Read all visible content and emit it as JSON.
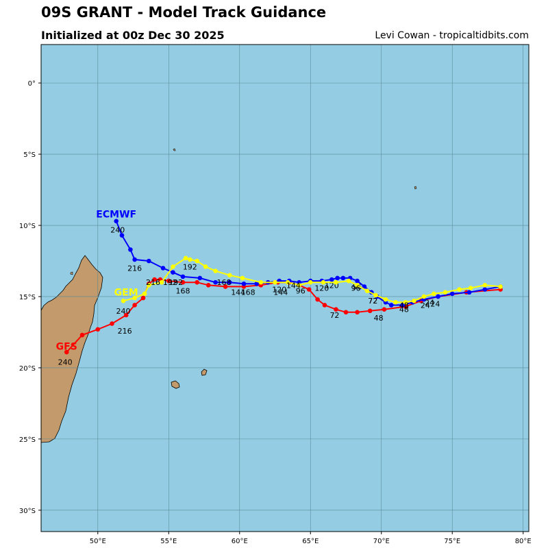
{
  "header": {
    "title": "09S GRANT - Model Track Guidance",
    "initialized": "Initialized at 00z Dec 30 2025",
    "credit": "Levi Cowan - tropicaltidbits.com"
  },
  "map": {
    "lon_range": [
      46,
      80.4
    ],
    "lat_range": [
      -31.5,
      2.7
    ],
    "lat_ticks": [
      {
        "value": 0,
        "label": "0°"
      },
      {
        "value": -5,
        "label": "5°S"
      },
      {
        "value": -10,
        "label": "10°S"
      },
      {
        "value": -15,
        "label": "15°S"
      },
      {
        "value": -20,
        "label": "20°S"
      },
      {
        "value": -25,
        "label": "25°S"
      },
      {
        "value": -30,
        "label": "30°S"
      }
    ],
    "lon_ticks": [
      {
        "value": 50,
        "label": "50°E"
      },
      {
        "value": 55,
        "label": "55°E"
      },
      {
        "value": 60,
        "label": "60°E"
      },
      {
        "value": 65,
        "label": "65°E"
      },
      {
        "value": 70,
        "label": "70°E"
      },
      {
        "value": 75,
        "label": "75°E"
      },
      {
        "value": 80,
        "label": "80°E"
      }
    ],
    "colors": {
      "ocean": "#94cde3",
      "land": "#c29a6b",
      "grid": "#5a8a9a",
      "gfs": "#ff0000",
      "ecmwf": "#0000ff",
      "gem": "#ffff00"
    }
  },
  "chart_data": {
    "type": "scatter",
    "series": [
      {
        "name": "GFS",
        "color": "#ff0000",
        "lon": [
          78.4,
          76.0,
          74.0,
          72.8,
          71.7,
          70.2,
          69.2,
          68.3,
          67.5,
          66.8,
          66.0,
          65.5,
          64.9,
          64.2,
          63.5,
          62.7,
          61.5,
          60.3,
          59.0,
          57.8,
          57.0,
          56.0,
          55.0,
          54.4,
          54.0,
          53.6,
          53.2,
          52.6,
          52.0,
          51.0,
          50.0,
          48.9,
          47.8
        ],
        "lat": [
          -14.5,
          -14.7,
          -15.0,
          -15.3,
          -15.7,
          -15.9,
          -16.0,
          -16.1,
          -16.1,
          -15.9,
          -15.6,
          -15.2,
          -14.5,
          -14.2,
          -14.0,
          -14.0,
          -14.2,
          -14.3,
          -14.3,
          -14.2,
          -14.0,
          -14.0,
          -13.9,
          -13.8,
          -13.8,
          -14.1,
          -15.1,
          -15.6,
          -16.3,
          -16.9,
          -17.3,
          -17.7,
          -18.9
        ],
        "labels": [
          {
            "lon": 73.1,
            "lat": -15.6,
            "text": "24"
          },
          {
            "lon": 69.8,
            "lat": -16.5,
            "text": "48"
          },
          {
            "lon": 66.7,
            "lat": -16.3,
            "text": "72"
          },
          {
            "lon": 64.3,
            "lat": -14.6,
            "text": "96"
          },
          {
            "lon": 62.8,
            "lat": -14.5,
            "text": "120"
          },
          {
            "lon": 59.9,
            "lat": -14.7,
            "text": "144"
          },
          {
            "lon": 56.0,
            "lat": -14.6,
            "text": "168"
          },
          {
            "lon": 55.1,
            "lat": -14.0,
            "text": "192"
          },
          {
            "lon": 51.9,
            "lat": -17.4,
            "text": "216"
          },
          {
            "lon": 47.7,
            "lat": -19.6,
            "text": "240"
          }
        ],
        "name_pos": {
          "lon": 47.8,
          "lat": -18.5
        }
      },
      {
        "name": "ECMWF",
        "color": "#0000ff",
        "lon": [
          78.4,
          77.3,
          76.2,
          75.0,
          74.0,
          73.0,
          72.2,
          71.5,
          70.7,
          70.3,
          69.7,
          69.3,
          68.8,
          68.3,
          67.8,
          67.3,
          66.9,
          66.5,
          65.8,
          65.0,
          64.2,
          63.5,
          62.8,
          62.0,
          61.2,
          60.3,
          59.3,
          58.3,
          57.2,
          56.0,
          55.3,
          54.6,
          53.6,
          52.6,
          52.3,
          51.7,
          51.3
        ],
        "lat": [
          -14.3,
          -14.5,
          -14.7,
          -14.8,
          -15.0,
          -15.2,
          -15.4,
          -15.6,
          -15.6,
          -15.4,
          -15.0,
          -14.7,
          -14.3,
          -13.9,
          -13.7,
          -13.7,
          -13.7,
          -13.8,
          -13.9,
          -13.9,
          -14.0,
          -13.9,
          -13.9,
          -14.0,
          -14.1,
          -14.1,
          -14.0,
          -14.0,
          -13.7,
          -13.6,
          -13.3,
          -13.0,
          -12.5,
          -12.4,
          -11.7,
          -10.7,
          -9.7
        ],
        "labels": [
          {
            "lon": 73.8,
            "lat": -15.5,
            "text": "24"
          },
          {
            "lon": 71.6,
            "lat": -15.9,
            "text": "48"
          },
          {
            "lon": 69.4,
            "lat": -15.3,
            "text": "72"
          },
          {
            "lon": 68.3,
            "lat": -14.3,
            "text": "96"
          },
          {
            "lon": 66.5,
            "lat": -14.2,
            "text": "120"
          },
          {
            "lon": 62.9,
            "lat": -14.7,
            "text": "144"
          },
          {
            "lon": 58.9,
            "lat": -14.0,
            "text": "168"
          },
          {
            "lon": 55.5,
            "lat": -14.0,
            "text": "192"
          },
          {
            "lon": 52.6,
            "lat": -13.0,
            "text": "216"
          },
          {
            "lon": 51.4,
            "lat": -10.3,
            "text": "240"
          }
        ],
        "name_pos": {
          "lon": 51.3,
          "lat": -9.2
        }
      },
      {
        "name": "GEM",
        "color": "#ffff00",
        "lon": [
          78.4,
          77.3,
          76.3,
          75.5,
          74.5,
          73.7,
          73.0,
          72.3,
          71.7,
          71.0,
          70.3,
          69.6,
          69.0,
          68.3,
          67.7,
          66.8,
          65.9,
          65.0,
          64.2,
          63.4,
          62.5,
          61.5,
          60.2,
          59.3,
          58.3,
          57.6,
          57.0,
          56.5,
          56.2,
          55.3,
          54.5,
          53.6,
          53.3,
          52.6,
          51.8
        ],
        "lat": [
          -14.3,
          -14.2,
          -14.4,
          -14.5,
          -14.7,
          -14.8,
          -15.0,
          -15.3,
          -15.4,
          -15.4,
          -15.2,
          -14.9,
          -14.6,
          -14.2,
          -13.9,
          -14.0,
          -14.0,
          -14.0,
          -14.2,
          -14.0,
          -14.0,
          -14.0,
          -13.7,
          -13.5,
          -13.2,
          -12.9,
          -12.5,
          -12.4,
          -12.3,
          -12.9,
          -14.0,
          -14.2,
          -14.8,
          -15.1,
          -15.3
        ],
        "labels": [
          {
            "lon": 73.4,
            "lat": -15.4,
            "text": "24"
          },
          {
            "lon": 71.6,
            "lat": -15.6,
            "text": "48"
          },
          {
            "lon": 69.4,
            "lat": -15.3,
            "text": "72"
          },
          {
            "lon": 68.2,
            "lat": -14.4,
            "text": "96"
          },
          {
            "lon": 65.8,
            "lat": -14.4,
            "text": "120"
          },
          {
            "lon": 63.8,
            "lat": -14.2,
            "text": "144"
          },
          {
            "lon": 60.6,
            "lat": -14.7,
            "text": "168"
          },
          {
            "lon": 56.5,
            "lat": -12.9,
            "text": "192"
          },
          {
            "lon": 53.9,
            "lat": -14.0,
            "text": "216"
          },
          {
            "lon": 51.8,
            "lat": -16.0,
            "text": "240"
          }
        ],
        "name_pos": {
          "lon": 52.0,
          "lat": -14.7
        }
      }
    ]
  }
}
